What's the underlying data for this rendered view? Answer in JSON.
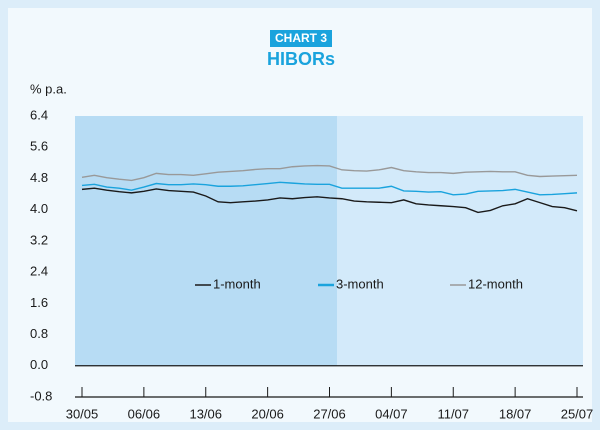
{
  "chart_data": {
    "type": "line",
    "label": "CHART 3",
    "title": "HIBORs",
    "y_label": "% p.a.",
    "categories": [
      "30/05",
      null,
      null,
      null,
      null,
      "06/06",
      null,
      null,
      null,
      null,
      "13/06",
      null,
      null,
      null,
      null,
      "20/06",
      null,
      null,
      null,
      null,
      "27/06",
      null,
      null,
      null,
      null,
      "04/07",
      null,
      null,
      null,
      null,
      "11/07",
      null,
      null,
      null,
      null,
      "18/07",
      null,
      null,
      null,
      null,
      "25/07"
    ],
    "series": [
      {
        "name": "1-month",
        "color": "#1a1a1a",
        "values": [
          4.52,
          4.55,
          4.5,
          4.46,
          4.43,
          4.47,
          4.53,
          4.49,
          4.47,
          4.45,
          4.35,
          4.2,
          4.18,
          4.2,
          4.22,
          4.25,
          4.3,
          4.28,
          4.31,
          4.33,
          4.3,
          4.28,
          4.22,
          4.2,
          4.19,
          4.18,
          4.25,
          4.15,
          4.12,
          4.1,
          4.08,
          4.05,
          3.93,
          3.98,
          4.1,
          4.15,
          4.28,
          4.18,
          4.08,
          4.05,
          3.97
        ]
      },
      {
        "name": "3-month",
        "color": "#1aa3dd",
        "values": [
          4.62,
          4.65,
          4.58,
          4.55,
          4.5,
          4.58,
          4.67,
          4.64,
          4.64,
          4.66,
          4.64,
          4.6,
          4.6,
          4.61,
          4.64,
          4.67,
          4.7,
          4.68,
          4.66,
          4.65,
          4.65,
          4.55,
          4.55,
          4.55,
          4.55,
          4.6,
          4.48,
          4.47,
          4.45,
          4.46,
          4.38,
          4.4,
          4.47,
          4.48,
          4.49,
          4.52,
          4.45,
          4.38,
          4.39,
          4.41,
          4.43
        ]
      },
      {
        "name": "12-month",
        "color": "#999999",
        "values": [
          4.83,
          4.88,
          4.82,
          4.78,
          4.75,
          4.82,
          4.93,
          4.9,
          4.9,
          4.88,
          4.92,
          4.96,
          4.98,
          5.0,
          5.03,
          5.05,
          5.05,
          5.1,
          5.12,
          5.13,
          5.12,
          5.02,
          5.0,
          4.99,
          5.02,
          5.08,
          5.0,
          4.97,
          4.95,
          4.95,
          4.93,
          4.96,
          4.97,
          4.98,
          4.97,
          4.97,
          4.88,
          4.85,
          4.86,
          4.87,
          4.88
        ]
      }
    ],
    "ylim": [
      -0.8,
      6.4
    ],
    "yticks": [
      6.4,
      5.6,
      4.8,
      {
        "value": 4,
        "label": "4.0"
      },
      3.2,
      2.4,
      1.6,
      0.8,
      {
        "value": 0,
        "label": "0.0"
      },
      -0.8
    ],
    "grid": false
  }
}
